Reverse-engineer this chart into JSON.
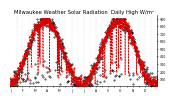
{
  "title": "Milwaukee Weather Solar Radiation  Daily High W/m²",
  "title_fontsize": 3.8,
  "bg_color": "#ffffff",
  "line1_color": "#dd0000",
  "line2_color": "#000000",
  "ylim": [
    0,
    950
  ],
  "yticks": [
    100,
    200,
    300,
    400,
    500,
    600,
    700,
    800,
    900
  ],
  "ytick_labels": [
    "1",
    "2",
    "3",
    "4",
    "5",
    "6",
    "7",
    "8",
    "9"
  ],
  "grid_color": "#bbbbbb",
  "months_labels": [
    "J",
    "",
    "F",
    "",
    "M",
    "",
    "A",
    "",
    "M",
    "",
    "J",
    "",
    "J",
    "",
    "A",
    "",
    "S",
    "",
    "O",
    "",
    "N",
    "",
    "D",
    "",
    "J",
    ""
  ]
}
